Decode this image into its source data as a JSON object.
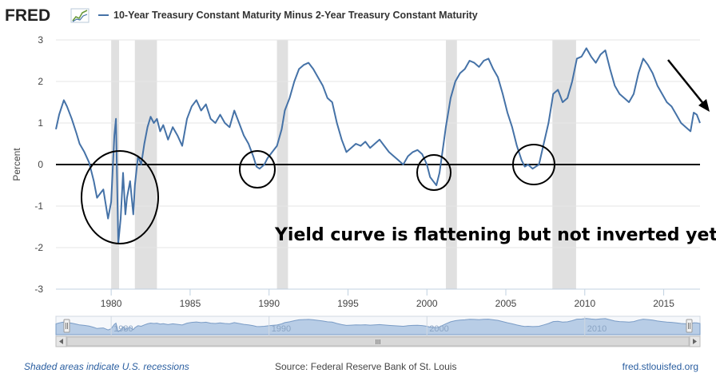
{
  "header": {
    "logo_text": "FRED",
    "legend_label": "10-Year Treasury Constant Maturity Minus 2-Year Treasury Constant Maturity"
  },
  "annotation": {
    "text": "Yield curve is flattening but not inverted yet"
  },
  "navigator": {
    "ticks": [
      "1980",
      "1990",
      "2000",
      "2010"
    ],
    "scroll_grip": "III"
  },
  "footer": {
    "recession_note": "Shaded areas indicate U.S. recessions",
    "source": "Source: Federal Reserve Bank of St. Louis",
    "site": "fred.stlouisfed.org"
  },
  "colors": {
    "series": "#4572a7",
    "recession_shade": "#e0e0e0",
    "navigator_fill": "#b8cde6",
    "zero_line": "#000000"
  },
  "chart_data": {
    "type": "line",
    "ylabel": "Percent",
    "xlabel": "",
    "xlim": [
      1976.5,
      2017.3
    ],
    "ylim": [
      -3,
      3
    ],
    "x_ticks": [
      1980,
      1985,
      1990,
      1995,
      2000,
      2005,
      2010,
      2015
    ],
    "y_ticks": [
      -3,
      -2,
      -1,
      0,
      1,
      2,
      3
    ],
    "grid": true,
    "recessions": [
      [
        1980.0,
        1980.5
      ],
      [
        1981.5,
        1982.9
      ],
      [
        1990.5,
        1991.2
      ],
      [
        2001.2,
        2001.9
      ],
      [
        2007.95,
        2009.45
      ]
    ],
    "series": [
      {
        "name": "10-Year Treasury Constant Maturity Minus 2-Year Treasury Constant Maturity",
        "x": [
          1976.5,
          1976.7,
          1977.0,
          1977.2,
          1977.5,
          1977.8,
          1978.0,
          1978.3,
          1978.6,
          1978.9,
          1979.1,
          1979.3,
          1979.5,
          1979.8,
          1980.0,
          1980.2,
          1980.3,
          1980.45,
          1980.6,
          1980.75,
          1980.9,
          1981.0,
          1981.2,
          1981.4,
          1981.5,
          1981.7,
          1981.9,
          1982.1,
          1982.3,
          1982.5,
          1982.7,
          1982.9,
          1983.1,
          1983.3,
          1983.6,
          1983.9,
          1984.2,
          1984.5,
          1984.8,
          1985.1,
          1985.4,
          1985.7,
          1986.0,
          1986.3,
          1986.6,
          1986.9,
          1987.2,
          1987.5,
          1987.8,
          1988.1,
          1988.4,
          1988.7,
          1989.0,
          1989.2,
          1989.4,
          1989.7,
          1989.9,
          1990.2,
          1990.5,
          1990.8,
          1991.0,
          1991.3,
          1991.6,
          1991.9,
          1992.2,
          1992.5,
          1992.8,
          1993.1,
          1993.4,
          1993.7,
          1994.0,
          1994.3,
          1994.6,
          1994.9,
          1995.2,
          1995.5,
          1995.8,
          1996.1,
          1996.4,
          1996.7,
          1997.0,
          1997.3,
          1997.6,
          1997.9,
          1998.2,
          1998.5,
          1998.8,
          1999.1,
          1999.4,
          1999.7,
          2000.0,
          2000.2,
          2000.4,
          2000.6,
          2000.8,
          2001.0,
          2001.2,
          2001.5,
          2001.8,
          2002.1,
          2002.4,
          2002.7,
          2003.0,
          2003.3,
          2003.6,
          2003.9,
          2004.2,
          2004.5,
          2004.8,
          2005.1,
          2005.4,
          2005.7,
          2006.0,
          2006.2,
          2006.4,
          2006.7,
          2006.9,
          2007.1,
          2007.4,
          2007.7,
          2008.0,
          2008.3,
          2008.6,
          2008.9,
          2009.2,
          2009.5,
          2009.8,
          2010.1,
          2010.4,
          2010.7,
          2011.0,
          2011.3,
          2011.6,
          2011.9,
          2012.2,
          2012.5,
          2012.8,
          2013.1,
          2013.4,
          2013.7,
          2014.0,
          2014.3,
          2014.6,
          2014.9,
          2015.2,
          2015.5,
          2015.8,
          2016.1,
          2016.4,
          2016.7,
          2016.9,
          2017.1,
          2017.3
        ],
        "values": [
          0.85,
          1.2,
          1.55,
          1.4,
          1.1,
          0.75,
          0.5,
          0.3,
          0.05,
          -0.4,
          -0.8,
          -0.7,
          -0.6,
          -1.3,
          -0.9,
          0.7,
          1.1,
          -1.9,
          -1.3,
          -0.2,
          -1.2,
          -0.8,
          -0.4,
          -1.2,
          -0.5,
          0.2,
          0.0,
          0.5,
          0.9,
          1.15,
          1.0,
          1.1,
          0.8,
          0.95,
          0.6,
          0.9,
          0.7,
          0.45,
          1.1,
          1.4,
          1.55,
          1.3,
          1.45,
          1.1,
          1.0,
          1.2,
          1.0,
          0.9,
          1.3,
          1.0,
          0.7,
          0.5,
          0.2,
          -0.05,
          -0.1,
          0.0,
          0.15,
          0.3,
          0.45,
          0.85,
          1.3,
          1.6,
          2.0,
          2.3,
          2.4,
          2.45,
          2.3,
          2.1,
          1.9,
          1.6,
          1.5,
          1.0,
          0.6,
          0.3,
          0.4,
          0.5,
          0.45,
          0.55,
          0.4,
          0.5,
          0.6,
          0.45,
          0.3,
          0.2,
          0.1,
          0.0,
          0.2,
          0.3,
          0.35,
          0.25,
          0.0,
          -0.3,
          -0.4,
          -0.5,
          -0.2,
          0.35,
          0.9,
          1.6,
          2.0,
          2.2,
          2.3,
          2.5,
          2.45,
          2.35,
          2.5,
          2.55,
          2.3,
          2.1,
          1.7,
          1.25,
          0.9,
          0.45,
          0.1,
          -0.05,
          0.0,
          -0.1,
          -0.05,
          0.0,
          0.5,
          1.0,
          1.7,
          1.8,
          1.5,
          1.6,
          2.0,
          2.55,
          2.6,
          2.8,
          2.6,
          2.45,
          2.65,
          2.75,
          2.3,
          1.9,
          1.7,
          1.6,
          1.5,
          1.7,
          2.2,
          2.55,
          2.4,
          2.2,
          1.9,
          1.7,
          1.5,
          1.4,
          1.2,
          1.0,
          0.9,
          0.8,
          1.25,
          1.2,
          1.0
        ]
      }
    ]
  }
}
